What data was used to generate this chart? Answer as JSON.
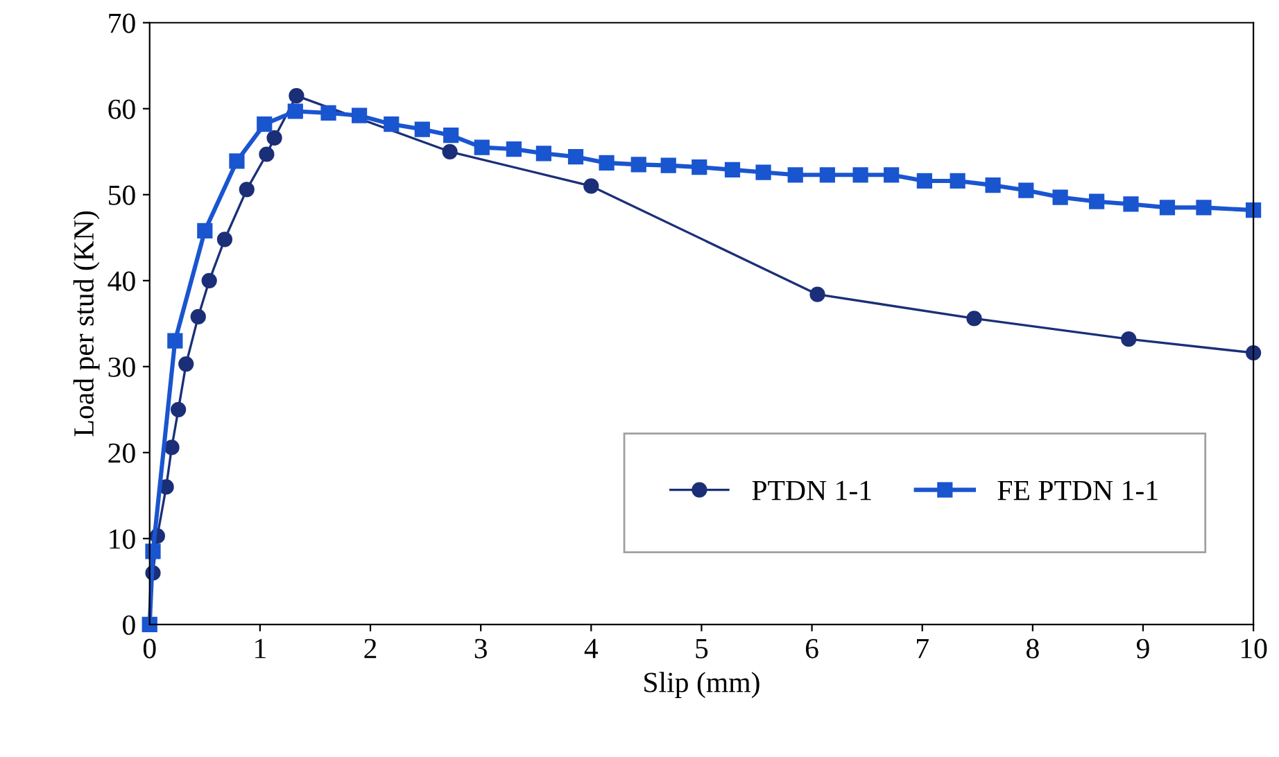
{
  "chart_data": {
    "type": "line",
    "xlabel": "Slip (mm)",
    "ylabel": "Load per stud (KN)",
    "xlim": [
      0,
      10
    ],
    "ylim": [
      0,
      70
    ],
    "xticks": [
      0,
      1,
      2,
      3,
      4,
      5,
      6,
      7,
      8,
      9,
      10
    ],
    "yticks": [
      0,
      10,
      20,
      30,
      40,
      50,
      60,
      70
    ],
    "grid": false,
    "legend": "bottom right",
    "series": [
      {
        "name": "PTDN 1-1",
        "color": "#1b2f78",
        "marker": "circle",
        "x": [
          0.03,
          0.07,
          0.15,
          0.2,
          0.26,
          0.33,
          0.44,
          0.54,
          0.68,
          0.88,
          1.06,
          1.13,
          1.33,
          2.72,
          4.0,
          6.05,
          7.47,
          8.87,
          10.0
        ],
        "values": [
          6,
          10.3,
          16,
          20.6,
          25,
          30.3,
          35.8,
          40,
          44.8,
          50.6,
          54.7,
          56.6,
          61.5,
          55,
          51,
          38.4,
          35.6,
          33.2,
          31.6
        ]
      },
      {
        "name": "FE PTDN 1-1",
        "color": "#1a55d0",
        "marker": "square",
        "x": [
          0,
          0.03,
          0.23,
          0.5,
          0.79,
          1.04,
          1.32,
          1.62,
          1.9,
          2.19,
          2.47,
          2.73,
          3.01,
          3.3,
          3.57,
          3.86,
          4.14,
          4.43,
          4.7,
          4.98,
          5.28,
          5.56,
          5.85,
          6.14,
          6.44,
          6.72,
          7.02,
          7.32,
          7.64,
          7.94,
          8.25,
          8.58,
          8.89,
          9.22,
          9.55,
          10.0
        ],
        "values": [
          0,
          8.5,
          33,
          45.8,
          53.9,
          58.2,
          59.7,
          59.5,
          59.2,
          58.2,
          57.6,
          56.9,
          55.5,
          55.3,
          54.8,
          54.4,
          53.7,
          53.5,
          53.4,
          53.2,
          52.9,
          52.6,
          52.3,
          52.3,
          52.3,
          52.3,
          51.6,
          51.6,
          51.1,
          50.5,
          49.7,
          49.2,
          48.9,
          48.5,
          48.5,
          48.2
        ]
      }
    ]
  }
}
